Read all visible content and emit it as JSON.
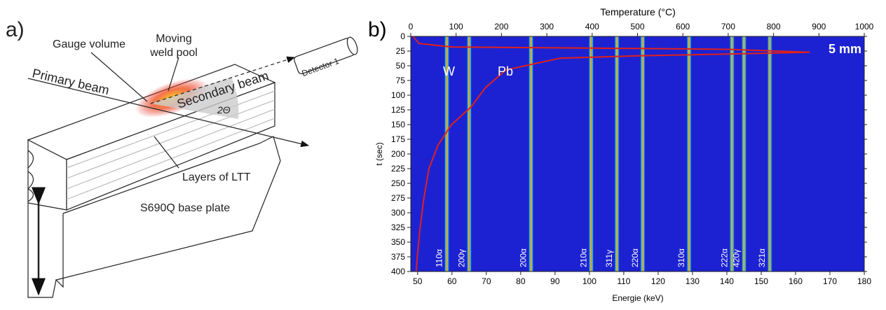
{
  "diagram": {
    "panel_label": "a)",
    "weld_pool": [
      "Moving",
      "weld pool"
    ],
    "gauge_volume": "Gauge volume",
    "detector": "Detector 1",
    "primary_beam": "Primary beam",
    "secondary_beam": "Secondary beam",
    "angle": "2Θ",
    "layers": "Layers of LTT",
    "base_plate": "S690Q base plate"
  },
  "chart_data": {
    "type": "heatmap",
    "panel_label": "b)",
    "x_label": "Energie (keV)",
    "x2_label": "Temperature (°C)",
    "y_label": "t (sec)",
    "xlim": [
      48,
      180
    ],
    "xticks": [
      50,
      60,
      70,
      80,
      90,
      100,
      110,
      120,
      130,
      140,
      150,
      160,
      170,
      180
    ],
    "x2lim": [
      0,
      1000
    ],
    "x2ticks": [
      0,
      100,
      200,
      300,
      400,
      500,
      600,
      700,
      800,
      900,
      1000
    ],
    "ylim": [
      400,
      0
    ],
    "yticks": [
      0,
      25,
      50,
      75,
      100,
      125,
      150,
      175,
      200,
      225,
      250,
      275,
      300,
      325,
      350,
      375,
      400
    ],
    "background": "#1c22d2",
    "peaks": [
      {
        "label": "110α",
        "energy": 58.5
      },
      {
        "label": "200γ",
        "energy": 65
      },
      {
        "label": "200α",
        "energy": 83
      },
      {
        "label": "210α",
        "energy": 100.5
      },
      {
        "label": "311γ",
        "energy": 108
      },
      {
        "label": "220α",
        "energy": 115.5
      },
      {
        "label": "310α",
        "energy": 129
      },
      {
        "label": "222α",
        "energy": 141.5
      },
      {
        "label": "420γ",
        "energy": 145
      },
      {
        "label": "321α",
        "energy": 152.5
      }
    ],
    "annotations": [
      "W",
      "Pb",
      "5 mm"
    ],
    "curve": {
      "color": "#e0201b",
      "temperature": [
        5,
        18,
        90,
        400,
        700,
        880,
        700,
        500,
        330,
        210,
        165,
        133,
        90,
        60,
        40,
        28,
        20,
        15,
        12
      ],
      "time": [
        0,
        12,
        18,
        20,
        22,
        27,
        30,
        33,
        37,
        57,
        87,
        120,
        150,
        185,
        225,
        280,
        330,
        370,
        400
      ]
    }
  }
}
